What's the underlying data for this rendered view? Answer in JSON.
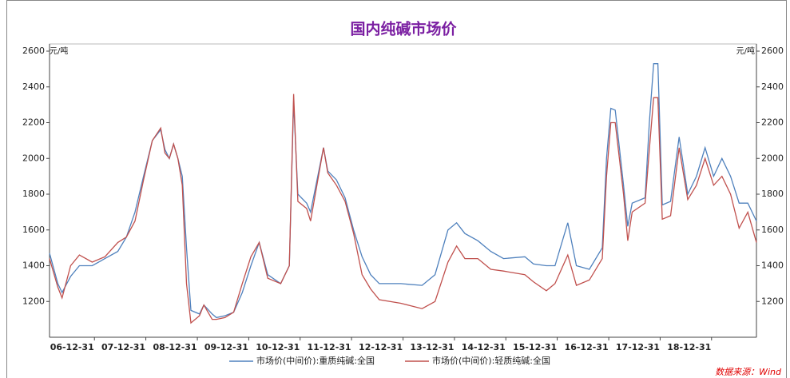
{
  "chart_data": {
    "type": "line",
    "title": "国内纯碱市场价",
    "y_unit": "元/吨",
    "y2_unit": "元/吨",
    "source": "数据来源：Wind",
    "xlim": [
      "06-02-15",
      "19-11-15"
    ],
    "xticks": [
      "06-12-31",
      "07-12-31",
      "08-12-31",
      "09-12-31",
      "10-12-31",
      "11-12-31",
      "12-12-31",
      "13-12-31",
      "14-12-31",
      "15-12-31",
      "16-12-31",
      "17-12-31",
      "18-12-31"
    ],
    "ylim": [
      1000,
      2600
    ],
    "yticks": [
      1200,
      1400,
      1600,
      1800,
      2000,
      2200,
      2400,
      2600
    ],
    "y2lim": [
      1000,
      2600
    ],
    "y2ticks": [
      1200,
      1400,
      1600,
      1800,
      2000,
      2200,
      2400,
      2600
    ],
    "x": [
      "06-02-15",
      "06-04-15",
      "06-05-15",
      "06-07-15",
      "06-09-15",
      "06-12-15",
      "07-03-15",
      "07-06-15",
      "07-08-15",
      "07-10-15",
      "07-12-15",
      "08-02-15",
      "08-04-15",
      "08-05-15",
      "08-06-15",
      "08-07-15",
      "08-08-15",
      "08-09-15",
      "08-10-15",
      "08-11-15",
      "09-01-15",
      "09-02-15",
      "09-04-15",
      "09-05-15",
      "09-07-15",
      "09-09-15",
      "09-11-15",
      "10-01-15",
      "10-03-15",
      "10-05-15",
      "10-08-15",
      "10-10-15",
      "10-11-15",
      "10-12-15",
      "11-02-15",
      "11-03-15",
      "11-06-15",
      "11-07-15",
      "11-09-15",
      "11-11-15",
      "12-01-15",
      "12-03-15",
      "12-05-15",
      "12-07-15",
      "12-12-15",
      "13-05-15",
      "13-08-15",
      "13-11-15",
      "14-01-15",
      "14-03-15",
      "14-06-15",
      "14-09-15",
      "14-12-15",
      "15-05-15",
      "15-07-15",
      "15-10-15",
      "15-12-15",
      "16-03-15",
      "16-05-15",
      "16-08-15",
      "16-11-15",
      "16-12-15",
      "17-01-15",
      "17-02-15",
      "17-04-15",
      "17-05-15",
      "17-06-15",
      "17-09-15",
      "17-10-15",
      "17-11-15",
      "17-12-15",
      "18-01-15",
      "18-03-15",
      "18-05-15",
      "18-07-15",
      "18-09-15",
      "18-11-15",
      "19-01-15",
      "19-03-15",
      "19-05-15",
      "19-07-15",
      "19-09-15",
      "19-11-15"
    ],
    "series": [
      {
        "name": "市场价(中间价):重质纯碱:全国",
        "color": "#4f81bd",
        "values": [
          1470,
          1300,
          1250,
          1340,
          1400,
          1400,
          1440,
          1480,
          1560,
          1700,
          1900,
          2100,
          2160,
          2050,
          2000,
          2080,
          2000,
          1900,
          1500,
          1150,
          1130,
          1180,
          1130,
          1110,
          1120,
          1140,
          1250,
          1400,
          1530,
          1350,
          1300,
          1400,
          2320,
          1800,
          1750,
          1700,
          2060,
          1930,
          1880,
          1780,
          1600,
          1450,
          1350,
          1300,
          1300,
          1290,
          1350,
          1600,
          1640,
          1580,
          1540,
          1480,
          1440,
          1450,
          1410,
          1400,
          1400,
          1640,
          1400,
          1380,
          1500,
          2000,
          2280,
          2270,
          1850,
          1620,
          1750,
          1780,
          2200,
          2530,
          2530,
          1740,
          1760,
          2120,
          1800,
          1900,
          2060,
          1900,
          2000,
          1900,
          1750,
          1750,
          1650
        ]
      },
      {
        "name": "市场价(中间价):轻质纯碱:全国",
        "color": "#c0504d",
        "values": [
          1440,
          1280,
          1220,
          1400,
          1460,
          1420,
          1450,
          1530,
          1560,
          1650,
          1880,
          2100,
          2170,
          2030,
          2000,
          2080,
          2000,
          1850,
          1300,
          1080,
          1120,
          1180,
          1100,
          1100,
          1110,
          1140,
          1300,
          1450,
          1530,
          1330,
          1300,
          1400,
          2360,
          1760,
          1720,
          1650,
          2060,
          1920,
          1850,
          1760,
          1580,
          1350,
          1270,
          1210,
          1190,
          1160,
          1200,
          1420,
          1510,
          1440,
          1440,
          1380,
          1370,
          1350,
          1310,
          1260,
          1300,
          1460,
          1290,
          1320,
          1440,
          1900,
          2200,
          2200,
          1800,
          1540,
          1700,
          1750,
          2050,
          2340,
          2340,
          1660,
          1680,
          2060,
          1770,
          1850,
          2000,
          1850,
          1900,
          1800,
          1610,
          1700,
          1530
        ]
      }
    ]
  }
}
